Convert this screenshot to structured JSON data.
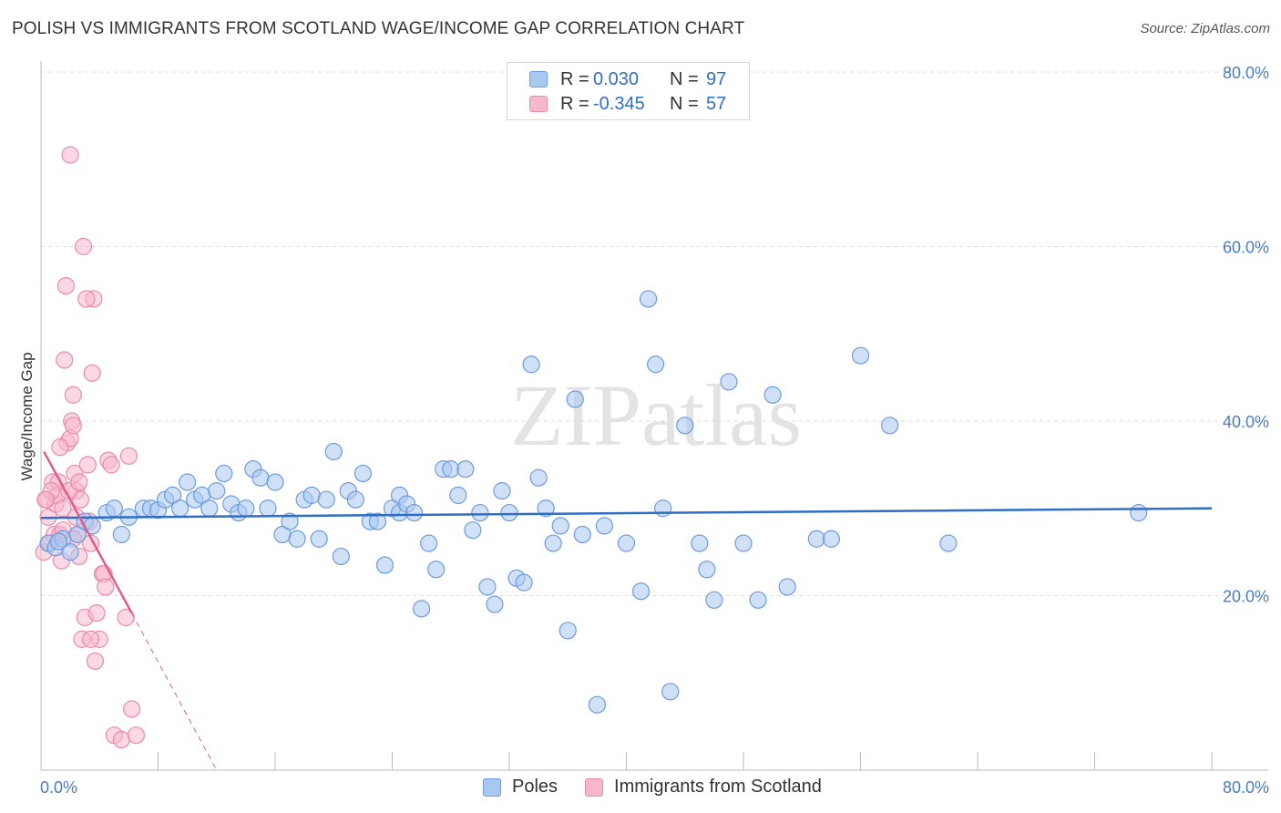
{
  "title": "POLISH VS IMMIGRANTS FROM SCOTLAND WAGE/INCOME GAP CORRELATION CHART",
  "source": "Source: ZipAtlas.com",
  "watermark": "ZIPatlas",
  "legend_stats": [
    {
      "r_label": "R =",
      "r_value": "0.030",
      "n_label": "N =",
      "n_value": "97",
      "color": "#a9c8f0",
      "stroke": "#6b9be0"
    },
    {
      "r_label": "R =",
      "r_value": "-0.345",
      "n_label": "N =",
      "n_value": "57",
      "color": "#f7b8cc",
      "stroke": "#ec8aaa"
    }
  ],
  "chart_data": {
    "type": "scatter",
    "xlabel": "",
    "ylabel": "Wage/Income Gap",
    "xlim": [
      0,
      80
    ],
    "ylim": [
      0,
      80
    ],
    "x_tick_labels": [
      "0.0%",
      "80.0%"
    ],
    "y_ticks": [
      20,
      40,
      60,
      80
    ],
    "y_tick_labels": [
      "20.0%",
      "40.0%",
      "60.0%",
      "80.0%"
    ],
    "grid": "horizontal dashed",
    "legend_position": "bottom",
    "series": [
      {
        "name": "Poles",
        "color": "#a9c8f0",
        "stroke": "#6b9be0",
        "trend": {
          "x": [
            0,
            80
          ],
          "y": [
            28.9,
            30.0
          ],
          "color": "#2f6ec7"
        },
        "points": [
          [
            0.5,
            26
          ],
          [
            1,
            25.5
          ],
          [
            1.5,
            26.5
          ],
          [
            2,
            25
          ],
          [
            2.5,
            27
          ],
          [
            1.2,
            26.2
          ],
          [
            3,
            28.5
          ],
          [
            3.5,
            28
          ],
          [
            4.5,
            29.5
          ],
          [
            5,
            30
          ],
          [
            5.5,
            27
          ],
          [
            6,
            29
          ],
          [
            7,
            30
          ],
          [
            7.5,
            30
          ],
          [
            8,
            29.8
          ],
          [
            8.5,
            31
          ],
          [
            9,
            31.5
          ],
          [
            9.5,
            30
          ],
          [
            10,
            33
          ],
          [
            10.5,
            31
          ],
          [
            11,
            31.5
          ],
          [
            11.5,
            30
          ],
          [
            12,
            32
          ],
          [
            12.5,
            34
          ],
          [
            13,
            30.5
          ],
          [
            13.5,
            29.5
          ],
          [
            14,
            30
          ],
          [
            14.5,
            34.5
          ],
          [
            15,
            33.5
          ],
          [
            15.5,
            30
          ],
          [
            16,
            33
          ],
          [
            16.5,
            27
          ],
          [
            17,
            28.5
          ],
          [
            17.5,
            26.5
          ],
          [
            18,
            31
          ],
          [
            18.5,
            31.5
          ],
          [
            19,
            26.5
          ],
          [
            19.5,
            31
          ],
          [
            20,
            36.5
          ],
          [
            20.5,
            24.5
          ],
          [
            21,
            32
          ],
          [
            21.5,
            31
          ],
          [
            22,
            34
          ],
          [
            22.5,
            28.5
          ],
          [
            23,
            28.5
          ],
          [
            23.5,
            23.5
          ],
          [
            24,
            30
          ],
          [
            24.5,
            29.5
          ],
          [
            24.5,
            31.5
          ],
          [
            25,
            30.5
          ],
          [
            25.5,
            29.5
          ],
          [
            26,
            18.5
          ],
          [
            26.5,
            26
          ],
          [
            27,
            23
          ],
          [
            27.5,
            34.5
          ],
          [
            28,
            34.5
          ],
          [
            28.5,
            31.5
          ],
          [
            29,
            34.5
          ],
          [
            29.5,
            27.5
          ],
          [
            30,
            29.5
          ],
          [
            30.5,
            21
          ],
          [
            31,
            19
          ],
          [
            31.5,
            32
          ],
          [
            32,
            29.5
          ],
          [
            32.5,
            22
          ],
          [
            33,
            21.5
          ],
          [
            33.5,
            46.5
          ],
          [
            34,
            33.5
          ],
          [
            34.5,
            30
          ],
          [
            35,
            26
          ],
          [
            35.5,
            28
          ],
          [
            36,
            16
          ],
          [
            36.5,
            42.5
          ],
          [
            37,
            27
          ],
          [
            38,
            7.5
          ],
          [
            38.5,
            28
          ],
          [
            40,
            26
          ],
          [
            41,
            20.5
          ],
          [
            41.5,
            54
          ],
          [
            42,
            46.5
          ],
          [
            42.5,
            30
          ],
          [
            43,
            9
          ],
          [
            44,
            39.5
          ],
          [
            45,
            26
          ],
          [
            45.5,
            23
          ],
          [
            46,
            19.5
          ],
          [
            47,
            44.5
          ],
          [
            48,
            26
          ],
          [
            49,
            19.5
          ],
          [
            50,
            43
          ],
          [
            51,
            21
          ],
          [
            53,
            26.5
          ],
          [
            54,
            26.5
          ],
          [
            56,
            47.5
          ],
          [
            58,
            39.5
          ],
          [
            62,
            26
          ],
          [
            75,
            29.5
          ]
        ]
      },
      {
        "name": "Immigrants from Scotland",
        "color": "#f7b8cc",
        "stroke": "#ec8aaa",
        "trend": {
          "x": [
            0.2,
            6.2
          ],
          "y": [
            36.5,
            18.0
          ],
          "dash_to": [
            12,
            0
          ],
          "color": "#e05d8b"
        },
        "points": [
          [
            0.2,
            25
          ],
          [
            0.4,
            31
          ],
          [
            0.5,
            29
          ],
          [
            0.6,
            26
          ],
          [
            0.8,
            33
          ],
          [
            0.9,
            27
          ],
          [
            1,
            30.5
          ],
          [
            1.1,
            31.5
          ],
          [
            1.2,
            33
          ],
          [
            1.3,
            27
          ],
          [
            1.4,
            24
          ],
          [
            1.5,
            30
          ],
          [
            1.6,
            47
          ],
          [
            1.7,
            55.5
          ],
          [
            1.8,
            37.5
          ],
          [
            2,
            38
          ],
          [
            2.1,
            40
          ],
          [
            2.2,
            43
          ],
          [
            2.3,
            34
          ],
          [
            2.4,
            32
          ],
          [
            2.5,
            27
          ],
          [
            2,
            70.5
          ],
          [
            2.2,
            39.5
          ],
          [
            2.4,
            29
          ],
          [
            2.6,
            24.5
          ],
          [
            2.7,
            31
          ],
          [
            2.8,
            15
          ],
          [
            3,
            17.5
          ],
          [
            3.2,
            35
          ],
          [
            3.3,
            28.5
          ],
          [
            3.4,
            26
          ],
          [
            3.5,
            45.5
          ],
          [
            3.6,
            54
          ],
          [
            3.7,
            12.5
          ],
          [
            3.8,
            18
          ],
          [
            4,
            15
          ],
          [
            4.2,
            22.5
          ],
          [
            4.3,
            22.5
          ],
          [
            4.4,
            21
          ],
          [
            4.6,
            35.5
          ],
          [
            4.8,
            35
          ],
          [
            5,
            4
          ],
          [
            5.5,
            3.5
          ],
          [
            5.8,
            17.5
          ],
          [
            6,
            36
          ],
          [
            6.2,
            7
          ],
          [
            6.5,
            4
          ],
          [
            2.9,
            60
          ],
          [
            3.1,
            54
          ],
          [
            1.9,
            32
          ],
          [
            2.6,
            33
          ],
          [
            1.5,
            27.5
          ],
          [
            0.7,
            32
          ],
          [
            0.3,
            31
          ],
          [
            1.3,
            37
          ],
          [
            3.4,
            15
          ],
          [
            2.2,
            26.5
          ]
        ]
      }
    ]
  }
}
